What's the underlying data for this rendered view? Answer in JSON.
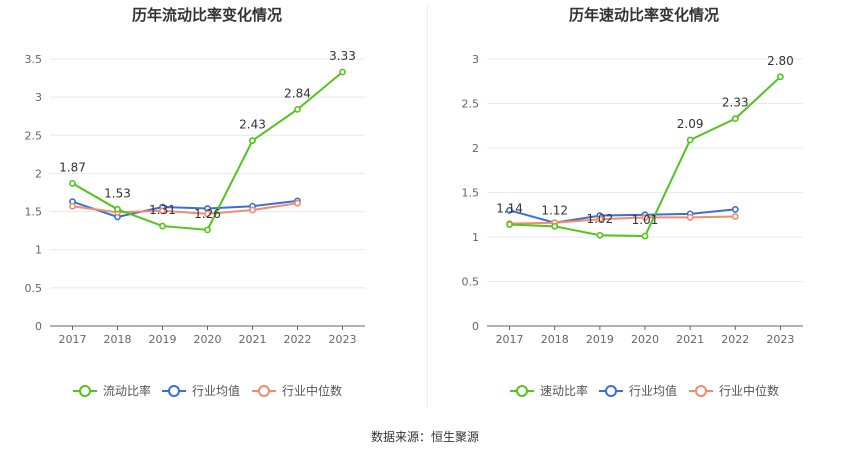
{
  "source_text": "数据来源：恒生聚源",
  "chart_data": [
    {
      "type": "line",
      "title": "历年流动比率变化情况",
      "categories": [
        "2017",
        "2018",
        "2019",
        "2020",
        "2021",
        "2022",
        "2023"
      ],
      "ylim": [
        0,
        3.5
      ],
      "yticks": [
        "0",
        "0.5",
        "1",
        "1.5",
        "2",
        "2.5",
        "3",
        "3.5"
      ],
      "grid": true,
      "legend_position": "bottom-center",
      "series": [
        {
          "name": "流动比率",
          "color": "#52c41a",
          "values": [
            1.87,
            1.53,
            1.31,
            1.26,
            2.43,
            2.84,
            3.33
          ],
          "labels": [
            "1.87",
            "1.53",
            "1.31",
            "1.26",
            "2.43",
            "2.84",
            "3.33"
          ]
        },
        {
          "name": "行业均值",
          "color": "#3a6fd8",
          "values": [
            1.63,
            1.43,
            1.56,
            1.54,
            1.57,
            1.64,
            null
          ]
        },
        {
          "name": "行业中位数",
          "color": "#f28c6a",
          "values": [
            1.57,
            1.49,
            1.51,
            1.47,
            1.52,
            1.61,
            null
          ]
        }
      ]
    },
    {
      "type": "line",
      "title": "历年速动比率变化情况",
      "categories": [
        "2017",
        "2018",
        "2019",
        "2020",
        "2021",
        "2022",
        "2023"
      ],
      "ylim": [
        0,
        3
      ],
      "yticks": [
        "0",
        "0.5",
        "1",
        "1.5",
        "2",
        "2.5",
        "3"
      ],
      "grid": true,
      "legend_position": "bottom-center",
      "series": [
        {
          "name": "速动比率",
          "color": "#52c41a",
          "values": [
            1.14,
            1.12,
            1.02,
            1.01,
            2.09,
            2.33,
            2.8
          ],
          "labels": [
            "1.14",
            "1.12",
            "1.02",
            "1.01",
            "2.09",
            "2.33",
            "2.80"
          ]
        },
        {
          "name": "行业均值",
          "color": "#3a6fd8",
          "values": [
            1.3,
            1.16,
            1.24,
            1.25,
            1.26,
            1.31,
            null
          ]
        },
        {
          "name": "行业中位数",
          "color": "#f28c6a",
          "values": [
            1.15,
            1.16,
            1.2,
            1.22,
            1.22,
            1.23,
            null
          ]
        }
      ]
    }
  ]
}
